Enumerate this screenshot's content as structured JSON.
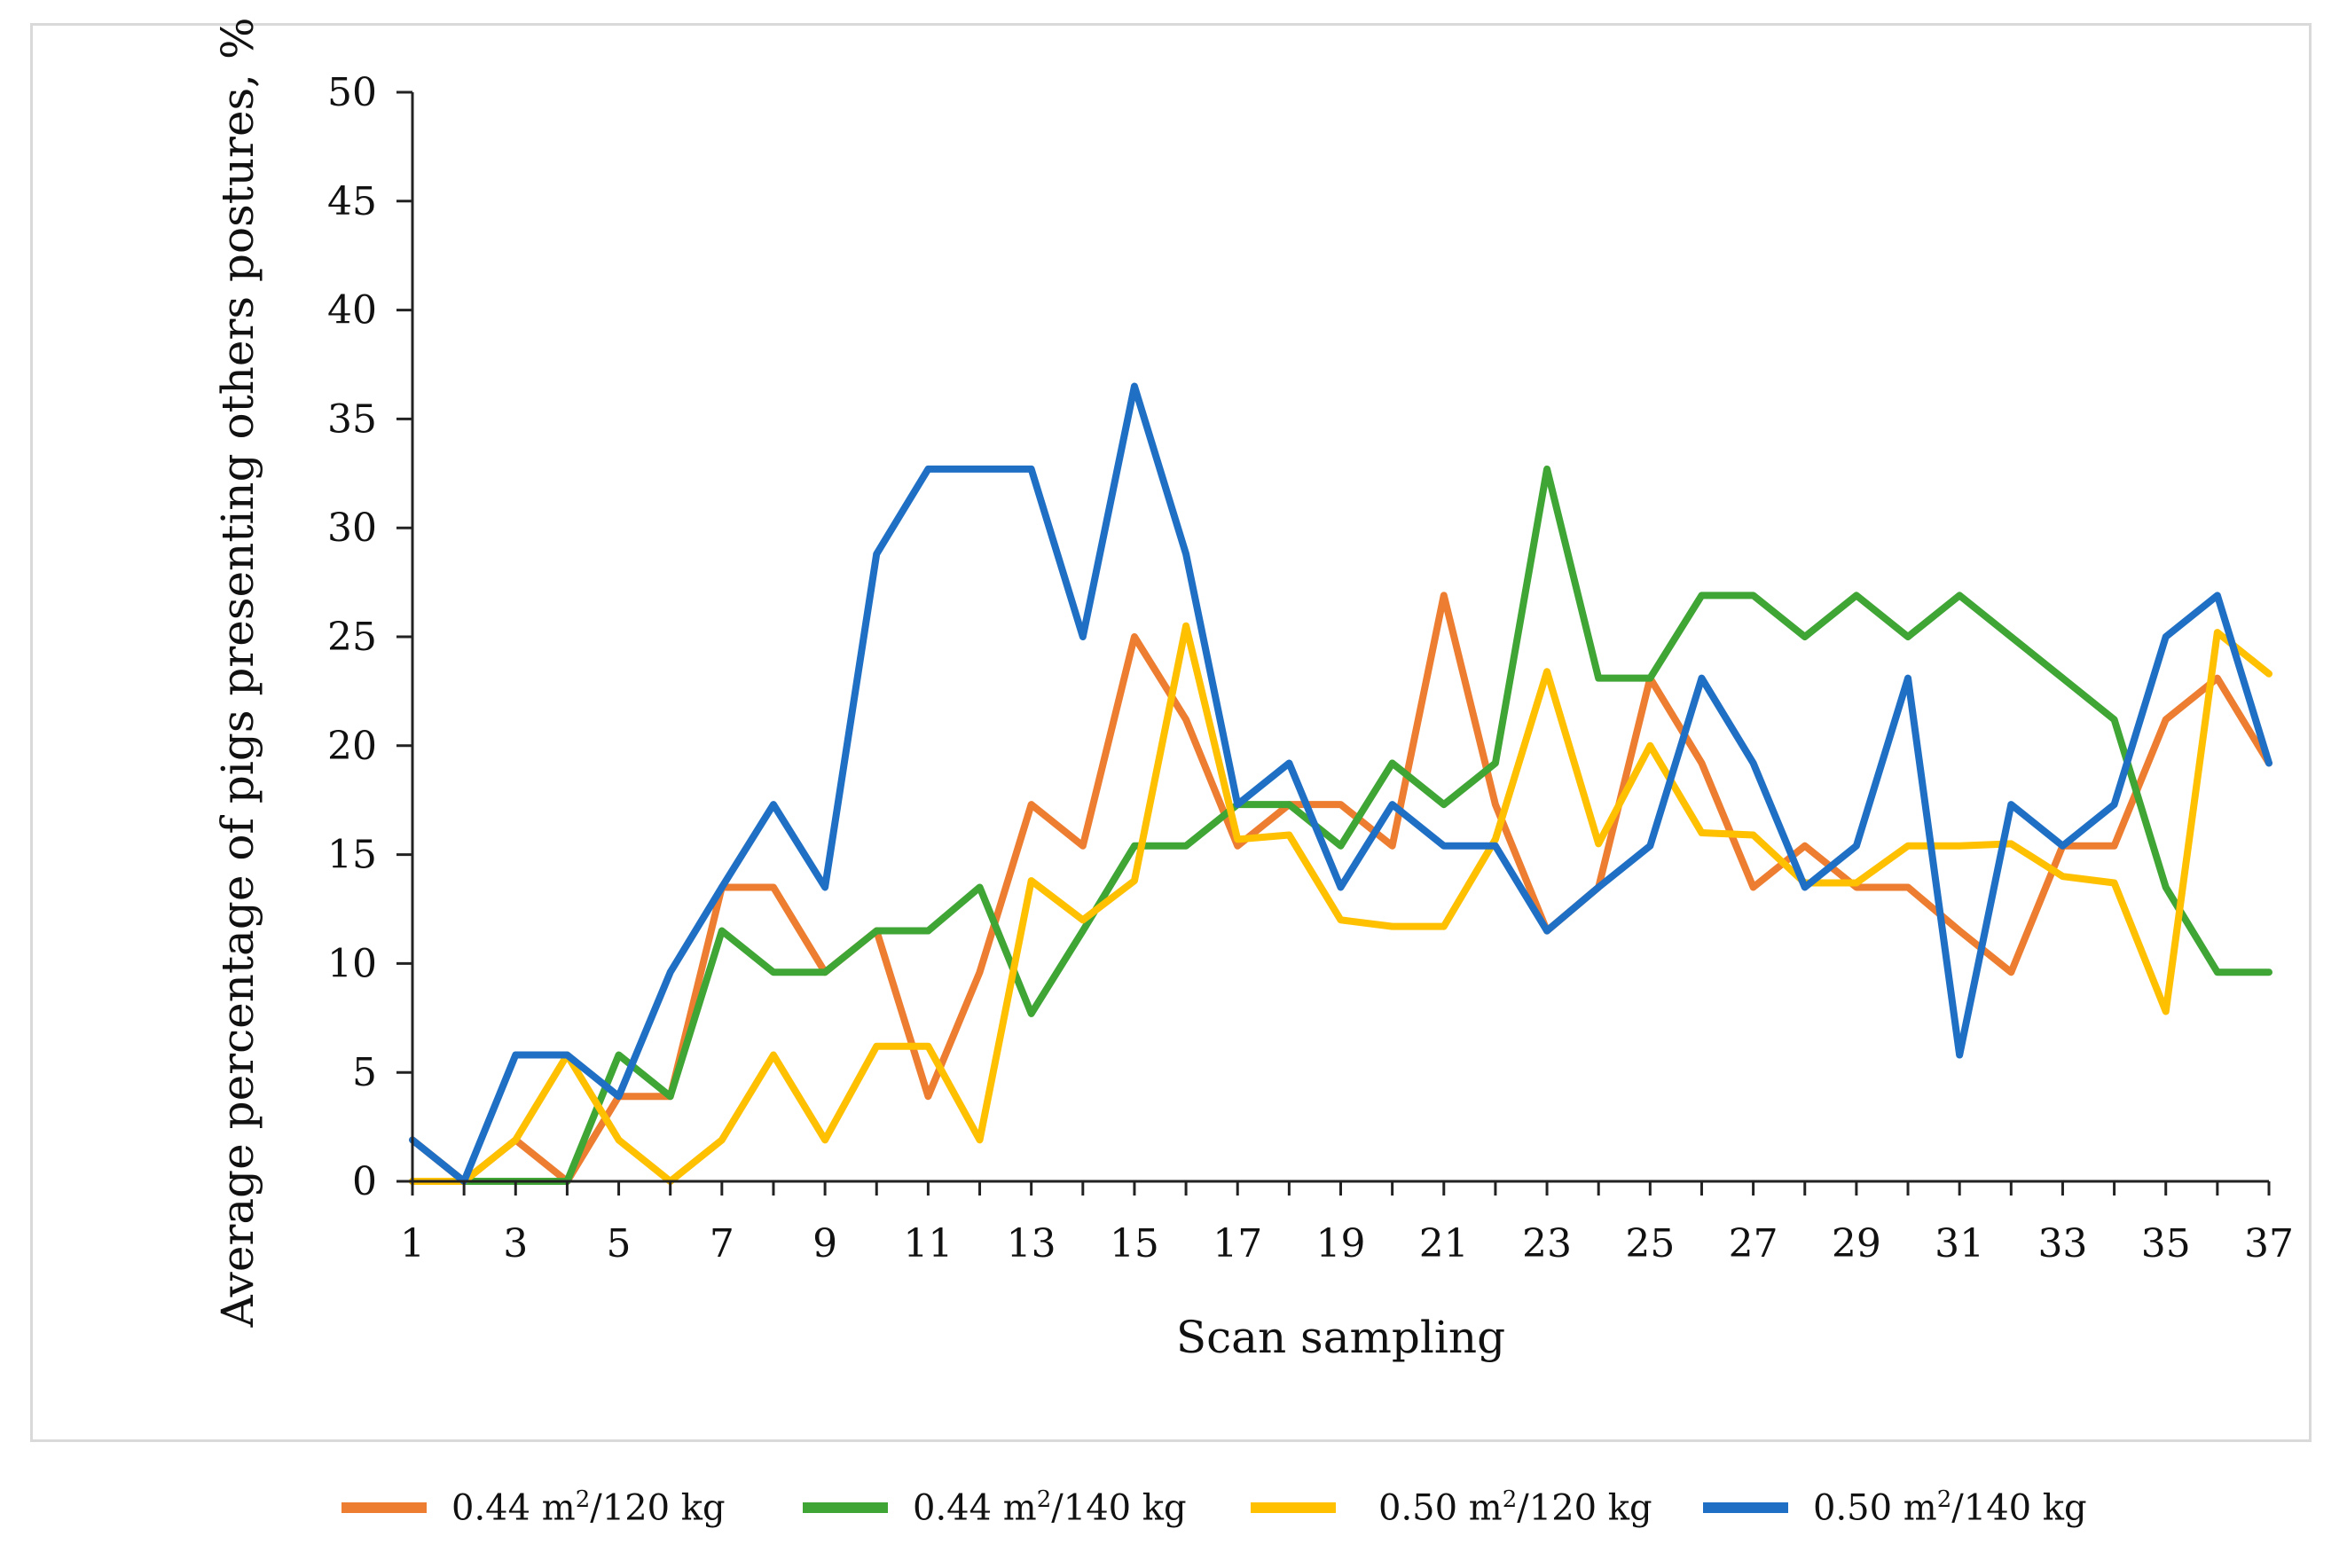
{
  "chart_data": {
    "type": "line",
    "title": "",
    "xlabel": "Scan sampling",
    "ylabel": "Average percentage of pigs presenting others postures, %",
    "x": [
      1,
      2,
      3,
      4,
      5,
      6,
      7,
      8,
      9,
      10,
      11,
      12,
      13,
      14,
      15,
      16,
      17,
      18,
      19,
      20,
      21,
      22,
      23,
      24,
      25,
      26,
      27,
      28,
      29,
      30,
      31,
      32,
      33,
      34,
      35,
      36,
      37
    ],
    "x_tick_labels": [
      "1",
      "3",
      "5",
      "7",
      "9",
      "11",
      "13",
      "15",
      "17",
      "19",
      "21",
      "23",
      "25",
      "27",
      "29",
      "31",
      "33",
      "35",
      "37"
    ],
    "y_ticks": [
      0,
      5,
      10,
      15,
      20,
      25,
      30,
      35,
      40,
      45,
      50
    ],
    "xlim": [
      1,
      37
    ],
    "ylim": [
      0,
      50
    ],
    "grid": false,
    "legend_position": "bottom",
    "series": [
      {
        "name": "0.44 m²/120 kg",
        "label_main": "0.44 m",
        "label_sup": "2",
        "label_tail": "/120 kg",
        "color": "#ED7D31",
        "values": [
          1.9,
          0,
          1.9,
          0,
          3.9,
          3.9,
          13.5,
          13.5,
          9.6,
          11.5,
          3.9,
          9.6,
          17.3,
          15.4,
          25,
          21.2,
          15.4,
          17.3,
          17.3,
          15.4,
          26.9,
          17.3,
          11.5,
          13.5,
          23.1,
          19.2,
          13.5,
          15.4,
          13.5,
          13.5,
          11.5,
          9.6,
          15.4,
          15.4,
          21.2,
          23.1,
          19.2
        ]
      },
      {
        "name": "0.44 m²/140 kg",
        "label_main": "0.44 m",
        "label_sup": "2",
        "label_tail": "/140 kg",
        "color": "#3FA535",
        "values": [
          0,
          0,
          0,
          0,
          5.8,
          3.9,
          11.5,
          9.6,
          9.6,
          11.5,
          11.5,
          13.5,
          7.7,
          11.5,
          15.4,
          15.4,
          17.3,
          17.3,
          15.4,
          19.2,
          17.3,
          19.2,
          32.7,
          23.1,
          23.1,
          26.9,
          26.9,
          25,
          26.9,
          25,
          26.9,
          25,
          23.1,
          21.2,
          13.5,
          9.6,
          9.6
        ]
      },
      {
        "name": "0.50 m²/120 kg",
        "label_main": "0.50 m",
        "label_sup": "2",
        "label_tail": "/120 kg",
        "color": "#FFC000",
        "values": [
          0,
          0,
          1.9,
          5.8,
          1.9,
          0,
          1.9,
          5.8,
          1.9,
          6.2,
          6.2,
          1.9,
          13.8,
          12,
          13.8,
          25.5,
          15.7,
          15.9,
          12,
          11.7,
          11.7,
          15.7,
          23.4,
          15.5,
          20,
          16,
          15.9,
          13.7,
          13.7,
          15.4,
          15.4,
          15.5,
          14,
          13.7,
          7.8,
          25.2,
          23.3
        ]
      },
      {
        "name": "0.50 m²/140 kg",
        "label_main": "0.50 m",
        "label_sup": "2",
        "label_tail": "/140 kg",
        "color": "#1F6FC5",
        "values": [
          1.9,
          0,
          5.8,
          5.8,
          3.9,
          9.6,
          13.5,
          17.3,
          13.5,
          28.8,
          32.7,
          32.7,
          32.7,
          25,
          36.5,
          28.8,
          17.3,
          19.2,
          13.5,
          17.3,
          15.4,
          15.4,
          11.5,
          13.5,
          15.4,
          23.1,
          19.2,
          13.5,
          15.4,
          23.1,
          5.8,
          17.3,
          15.4,
          17.3,
          25,
          26.9,
          19.2
        ]
      }
    ]
  }
}
